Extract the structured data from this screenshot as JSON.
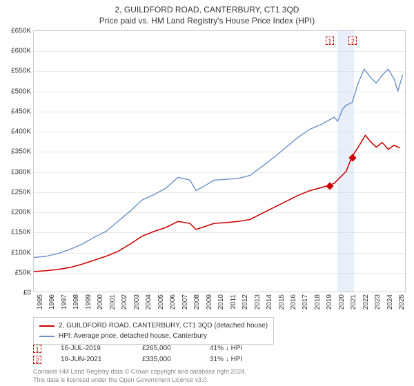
{
  "title": "2, GUILDFORD ROAD, CANTERBURY, CT1 3QD",
  "subtitle": "Price paid vs. HM Land Registry's House Price Index (HPI)",
  "chart": {
    "type": "line",
    "background_color": "#ffffff",
    "grid_color": "#e8e8e8",
    "border_color": "#cccccc",
    "x_range": [
      1995,
      2025.9
    ],
    "y_range": [
      0,
      650
    ],
    "y_ticks": [
      0,
      50,
      100,
      150,
      200,
      250,
      300,
      350,
      400,
      450,
      500,
      550,
      600,
      650
    ],
    "y_tick_labels": [
      "£0",
      "£50K",
      "£100K",
      "£150K",
      "£200K",
      "£250K",
      "£300K",
      "£350K",
      "£400K",
      "£450K",
      "£500K",
      "£550K",
      "£600K",
      "£650K"
    ],
    "x_ticks": [
      1995,
      1996,
      1997,
      1998,
      1999,
      2000,
      2001,
      2002,
      2003,
      2004,
      2005,
      2006,
      2007,
      2008,
      2009,
      2010,
      2011,
      2012,
      2013,
      2014,
      2015,
      2016,
      2017,
      2018,
      2019,
      2020,
      2021,
      2022,
      2023,
      2024,
      2025
    ],
    "x_tick_labels": [
      "1995",
      "1996",
      "1997",
      "1998",
      "1999",
      "2000",
      "2001",
      "2002",
      "2003",
      "2004",
      "2005",
      "2006",
      "2007",
      "2008",
      "2009",
      "2010",
      "2011",
      "2012",
      "2013",
      "2014",
      "2015",
      "2016",
      "2017",
      "2018",
      "2019",
      "2020",
      "2021",
      "2022",
      "2023",
      "2024",
      "2025"
    ],
    "label_fontsize": 10,
    "title_fontsize": 12,
    "shaded_band": {
      "x_start": 2020.15,
      "x_end": 2021.55,
      "color": "rgba(200,215,240,0.4)"
    },
    "series": [
      {
        "name": "property_price",
        "label": "2, GUILDFORD ROAD, CANTERBURY, CT1 3QD (detached house)",
        "color": "#cc0000",
        "line_width": 1.6,
        "points": [
          [
            1995,
            50
          ],
          [
            1996,
            52
          ],
          [
            1997,
            55
          ],
          [
            1998,
            60
          ],
          [
            1999,
            68
          ],
          [
            2000,
            78
          ],
          [
            2001,
            88
          ],
          [
            2002,
            100
          ],
          [
            2003,
            118
          ],
          [
            2004,
            138
          ],
          [
            2005,
            150
          ],
          [
            2006,
            160
          ],
          [
            2007,
            175
          ],
          [
            2008,
            170
          ],
          [
            2008.5,
            155
          ],
          [
            2009,
            160
          ],
          [
            2010,
            170
          ],
          [
            2011,
            172
          ],
          [
            2012,
            175
          ],
          [
            2013,
            180
          ],
          [
            2014,
            195
          ],
          [
            2015,
            210
          ],
          [
            2016,
            225
          ],
          [
            2017,
            240
          ],
          [
            2018,
            252
          ],
          [
            2019,
            260
          ],
          [
            2019.54,
            265
          ],
          [
            2020,
            270
          ],
          [
            2021,
            300
          ],
          [
            2021.46,
            335
          ],
          [
            2022,
            360
          ],
          [
            2022.6,
            390
          ],
          [
            2023,
            375
          ],
          [
            2023.5,
            360
          ],
          [
            2024,
            372
          ],
          [
            2024.5,
            355
          ],
          [
            2025,
            365
          ],
          [
            2025.5,
            358
          ]
        ]
      },
      {
        "name": "hpi",
        "label": "HPI: Average price, detached house, Canterbury",
        "color": "#6b8fc9",
        "line_width": 1.4,
        "points": [
          [
            1995,
            85
          ],
          [
            1996,
            88
          ],
          [
            1997,
            95
          ],
          [
            1998,
            105
          ],
          [
            1999,
            118
          ],
          [
            2000,
            135
          ],
          [
            2001,
            150
          ],
          [
            2002,
            175
          ],
          [
            2003,
            200
          ],
          [
            2004,
            228
          ],
          [
            2005,
            242
          ],
          [
            2006,
            258
          ],
          [
            2007,
            285
          ],
          [
            2008,
            278
          ],
          [
            2008.5,
            252
          ],
          [
            2009,
            260
          ],
          [
            2010,
            278
          ],
          [
            2011,
            280
          ],
          [
            2012,
            282
          ],
          [
            2013,
            290
          ],
          [
            2014,
            312
          ],
          [
            2015,
            335
          ],
          [
            2016,
            360
          ],
          [
            2017,
            385
          ],
          [
            2018,
            405
          ],
          [
            2019,
            418
          ],
          [
            2020,
            435
          ],
          [
            2020.3,
            425
          ],
          [
            2020.7,
            455
          ],
          [
            2021,
            465
          ],
          [
            2021.5,
            472
          ],
          [
            2022,
            520
          ],
          [
            2022.5,
            555
          ],
          [
            2023,
            535
          ],
          [
            2023.5,
            520
          ],
          [
            2024,
            540
          ],
          [
            2024.5,
            555
          ],
          [
            2025,
            530
          ],
          [
            2025.3,
            500
          ],
          [
            2025.7,
            540
          ]
        ]
      }
    ],
    "sale_markers": [
      {
        "n": "1",
        "x": 2019.54,
        "y": 265,
        "color": "#cc0000"
      },
      {
        "n": "2",
        "x": 2021.46,
        "y": 335,
        "color": "#cc0000"
      }
    ]
  },
  "legend": {
    "items": [
      {
        "color": "#cc0000",
        "label": "2, GUILDFORD ROAD, CANTERBURY, CT1 3QD (detached house)"
      },
      {
        "color": "#6b8fc9",
        "label": "HPI: Average price, detached house, Canterbury"
      }
    ]
  },
  "sales": [
    {
      "marker": "1",
      "date": "16-JUL-2019",
      "price": "£265,000",
      "pct": "41% ↓ HPI"
    },
    {
      "marker": "2",
      "date": "18-JUN-2021",
      "price": "£335,000",
      "pct": "31% ↓ HPI"
    }
  ],
  "footer": {
    "line1": "Contains HM Land Registry data © Crown copyright and database right 2024.",
    "line2": "This data is licensed under the Open Government Licence v3.0."
  }
}
